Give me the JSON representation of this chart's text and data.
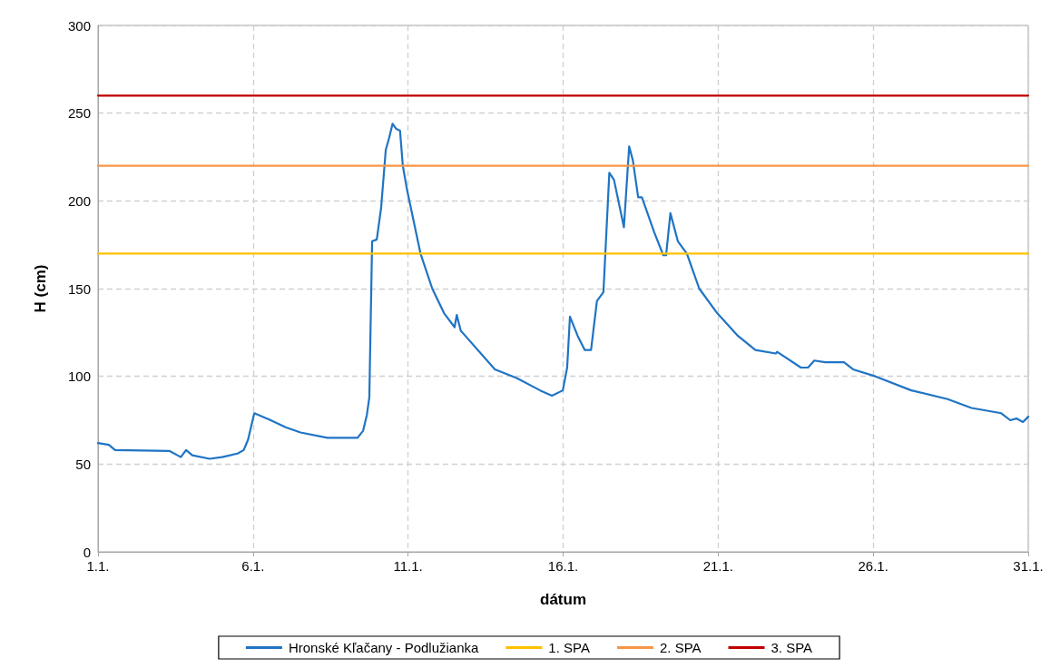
{
  "chart_data": {
    "type": "line",
    "xlabel": "dátum",
    "ylabel": "H (cm)",
    "xlim": [
      "--01-01",
      "--01-31"
    ],
    "xticks": [
      {
        "value": "--01-01",
        "label": "1.1."
      },
      {
        "value": "--01-06",
        "label": "6.1."
      },
      {
        "value": "--01-11",
        "label": "11.1."
      },
      {
        "value": "--01-16",
        "label": "16.1."
      },
      {
        "value": "--01-21",
        "label": "21.1."
      },
      {
        "value": "--01-26",
        "label": "26.1."
      },
      {
        "value": "--01-31",
        "label": "31.1."
      }
    ],
    "ylim": [
      0,
      300
    ],
    "yticks": [
      0,
      50,
      100,
      150,
      200,
      250,
      300
    ],
    "grid": true,
    "legend": "bottom",
    "marker": "none",
    "line_style": "solid",
    "series": [
      {
        "name": "Hronské Kľačany - Podlužianka",
        "color": "#1f74c4",
        "x": [
          "--01-01",
          "--01-01T08:24",
          "--01-01T13:12",
          "--01-03T07:12",
          "--01-03T16:05",
          "--01-03T20:10",
          "--01-04T00:58",
          "--01-04T14:24",
          "--01-05",
          "--01-05T12:00",
          "--01-05T16:48",
          "--01-05T20:10",
          "--01-06T00:58",
          "--01-06T13:41",
          "--01-07T01:12",
          "--01-07T12:43",
          "--01-08T09:36",
          "--01-09T04:48",
          "--01-09T08:53",
          "--01-09T13:12",
          "--01-09T16:05",
          "--01-09T18:00",
          "--01-09T20:10",
          "--01-09T23:46",
          "--01-10T03:07",
          "--01-10T06:43",
          "--01-10T09:22",
          "--01-10T12:00",
          "--01-10T14:53",
          "--01-10T17:46",
          "--01-10T19:55",
          "--01-10T23:17",
          "--01-11T09:36",
          "--01-11T18:43",
          "--01-12T03:50",
          "--01-12T12:00",
          "--01-12T13:41",
          "--01-12T16:48",
          "--01-13T19:12",
          "--01-14T12:00",
          "--01-15T06:14",
          "--01-15T15:22",
          "--01-15T23:46",
          "--01-16T03:07",
          "--01-16T05:17",
          "--01-16T11:17",
          "--01-16T16:48",
          "--01-16T21:36",
          "--01-17T02:10",
          "--01-17T07:12",
          "--01-17T11:46",
          "--01-17T15:22",
          "--01-17T23:02",
          "--01-18T03:07",
          "--01-18T06:00",
          "--01-18T10:05",
          "--01-18T12:58",
          "--01-18T22:34",
          "--01-19T05:31",
          "--01-19T07:41",
          "--01-19T11:02",
          "--01-19T16:48",
          "--01-19T23:46",
          "--01-20T09:22",
          "--01-20T23:17",
          "--01-21T15:22",
          "--01-22T04:48",
          "--01-22T20:38",
          "--01-22T21:36",
          "--01-23T16:05",
          "--01-23T21:36",
          "--01-24T02:24",
          "--01-24T10:48",
          "--01-24T21:36",
          "--01-25T01:26",
          "--01-25T08:24",
          "--01-26T01:41",
          "--01-27T05:31",
          "--01-28T09:36",
          "--01-29T04:05",
          "--01-30T03:07",
          "--01-30T10:05",
          "--01-30T14:53",
          "--01-30T19:55",
          "--01-31"
        ],
        "values": [
          62,
          61,
          58,
          57.5,
          54,
          58,
          55,
          53,
          54,
          56,
          58,
          64,
          79,
          75,
          71,
          68,
          65,
          65,
          65,
          69,
          78,
          88,
          177,
          178,
          196,
          229,
          236,
          244,
          241,
          240,
          220,
          206,
          170,
          150,
          136,
          128,
          135,
          126,
          104,
          99,
          92,
          89,
          92,
          105,
          134,
          123,
          115,
          115,
          143,
          148,
          216,
          212,
          185,
          231,
          223,
          202,
          202,
          182,
          169,
          169,
          193,
          177,
          170,
          150,
          136,
          123,
          115,
          113,
          114,
          105,
          105,
          109,
          108,
          108,
          108,
          104,
          100,
          92,
          87,
          82,
          79,
          75,
          76,
          74,
          77
        ]
      },
      {
        "name": "1. SPA",
        "color": "#ffc000",
        "x": [
          "--01-01",
          "--01-31"
        ],
        "values": [
          170,
          170
        ]
      },
      {
        "name": "2. SPA",
        "color": "#f79646",
        "x": [
          "--01-01",
          "--01-31"
        ],
        "values": [
          220,
          220
        ]
      },
      {
        "name": "3. SPA",
        "color": "#c00000",
        "x": [
          "--01-01",
          "--01-31"
        ],
        "values": [
          260,
          260
        ]
      }
    ]
  }
}
